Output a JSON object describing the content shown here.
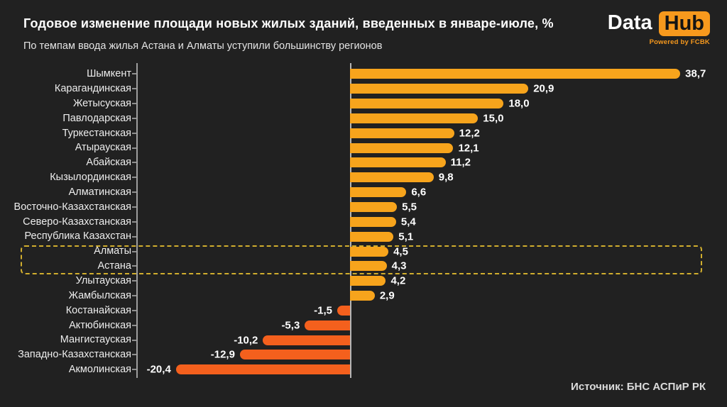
{
  "header": {
    "title": "Годовое изменение площади новых жилых зданий, введенных в январе-июле, %",
    "subtitle": "По темпам ввода жилья Астана и Алматы уступили большинству регионов"
  },
  "logo": {
    "part1": "Data",
    "part2": "Hub",
    "powered_by": "Powered by FCBK"
  },
  "footer": {
    "source": "Источник: БНС АСПиР РК"
  },
  "colors": {
    "background": "#212121",
    "bar_positive": "#f7a41c",
    "bar_negative": "#f4601d",
    "highlight_box": "#d1ae2e",
    "axis_spine": "#9e9e9e",
    "zero_line": "#b5b5b5",
    "logo_orange": "#f7991d"
  },
  "chart_data": {
    "type": "bar",
    "orientation": "horizontal",
    "unit": "%",
    "title": "Годовое изменение площади новых жилых зданий, введенных в январе-июле, %",
    "xlim": [
      -25,
      44
    ],
    "grid": false,
    "legend": "none",
    "categories": [
      "Шымкент",
      "Карагандинская",
      "Жетысуская",
      "Павлодарская",
      "Туркестанская",
      "Атырауская",
      "Абайская",
      "Кызылординская",
      "Алматинская",
      "Восточно-Казахстанская",
      "Северо-Казахстанская",
      "Республика Казахстан",
      "Алматы",
      "Астана",
      "Улытауская",
      "Жамбылская",
      "Костанайская",
      "Актюбинская",
      "Мангистауская",
      "Западно-Казахстанская",
      "Акмолинская"
    ],
    "values": [
      38.7,
      20.9,
      18.0,
      15.0,
      12.2,
      12.1,
      11.2,
      9.8,
      6.6,
      5.5,
      5.4,
      5.1,
      4.5,
      4.3,
      4.2,
      2.9,
      -1.5,
      -5.3,
      -10.2,
      -12.9,
      -20.4
    ],
    "value_labels": [
      "38,7",
      "20,9",
      "18,0",
      "15,0",
      "12,2",
      "12,1",
      "11,2",
      "9,8",
      "6,6",
      "5,5",
      "5,4",
      "5,1",
      "4,5",
      "4,3",
      "4,2",
      "2,9",
      "-1,5",
      "-5,3",
      "-10,2",
      "-12,9",
      "-20,4"
    ],
    "highlighted_categories": [
      "Алматы",
      "Астана"
    ]
  }
}
